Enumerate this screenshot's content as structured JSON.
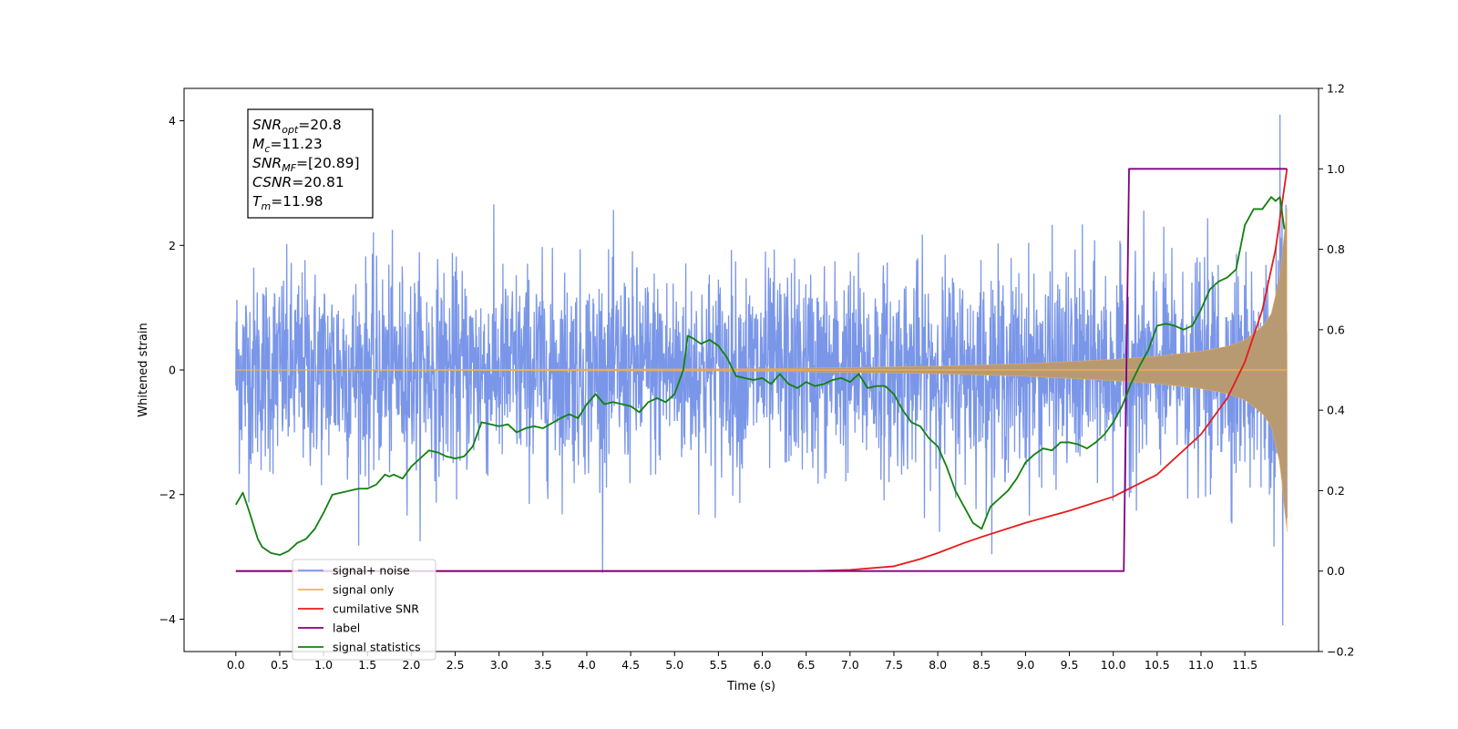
{
  "chart_data": {
    "type": "line",
    "title": "",
    "xlabel": "Time (s)",
    "ylabel": "Whitened strain",
    "xlim": [
      -0.59,
      12.34
    ],
    "ylim": [
      -4.52,
      4.52
    ],
    "y2lim": [
      -0.2,
      1.2
    ],
    "xticks": [
      0.0,
      0.5,
      1.0,
      1.5,
      2.0,
      2.5,
      3.0,
      3.5,
      4.0,
      4.5,
      5.0,
      5.5,
      6.0,
      6.5,
      7.0,
      7.5,
      8.0,
      8.5,
      9.0,
      9.5,
      10.0,
      10.5,
      11.0,
      11.5
    ],
    "xtick_labels": [
      "0.0",
      "0.5",
      "1.0",
      "1.5",
      "2.0",
      "2.5",
      "3.0",
      "3.5",
      "4.0",
      "4.5",
      "5.0",
      "5.5",
      "6.0",
      "6.5",
      "7.0",
      "7.5",
      "8.0",
      "8.5",
      "9.0",
      "9.5",
      "10.0",
      "10.5",
      "11.0",
      "11.5"
    ],
    "yticks": [
      -4,
      -2,
      0,
      2,
      4
    ],
    "ytick_labels": [
      "−4",
      "−2",
      "0",
      "2",
      "4"
    ],
    "y2ticks": [
      -0.2,
      0.0,
      0.2,
      0.4,
      0.6,
      0.8,
      1.0,
      1.2
    ],
    "y2tick_labels": [
      "−0.2",
      "0.0",
      "0.2",
      "0.4",
      "0.6",
      "0.8",
      "1.0",
      "1.2"
    ],
    "grid": false,
    "legend_position": "lower-left",
    "annotation": {
      "lines": [
        {
          "main": "SNR",
          "sub": "opt",
          "rest": "=20.8"
        },
        {
          "main": "M",
          "sub": "c",
          "rest": "=11.23"
        },
        {
          "main": "SNR",
          "sub": "MF",
          "rest": "=[20.89]"
        },
        {
          "main": "CSNR",
          "sub": "",
          "rest": "=20.81"
        },
        {
          "main": "T",
          "sub": "m",
          "rest": "=11.98"
        }
      ]
    },
    "series": [
      {
        "name": "signal+ noise",
        "color": "#7a96e8",
        "axis": "left",
        "style": "noise",
        "sample_rate": 250,
        "t_start": 0.0,
        "t_end": 11.98,
        "typical_peak": 1.7,
        "max_value": 4.1,
        "min_value": -4.1
      },
      {
        "name": "signal only",
        "color": "#f5b054",
        "fill_color": "#b89a72",
        "axis": "left",
        "style": "chirp_envelope",
        "t_start": 0.0,
        "t_end": 11.98,
        "envelope_t": [
          0.0,
          6.0,
          8.0,
          9.0,
          10.0,
          10.5,
          11.0,
          11.3,
          11.5,
          11.7,
          11.8,
          11.9,
          11.95,
          11.98
        ],
        "envelope_a": [
          0.0,
          0.02,
          0.06,
          0.1,
          0.17,
          0.22,
          0.3,
          0.38,
          0.48,
          0.7,
          0.9,
          1.5,
          2.2,
          2.6
        ]
      },
      {
        "name": "cumilative SNR",
        "color": "#e8191a",
        "axis": "right",
        "x": [
          0.0,
          6.5,
          7.0,
          7.5,
          7.8,
          8.0,
          8.3,
          8.5,
          9.0,
          9.5,
          10.0,
          10.5,
          11.0,
          11.3,
          11.5,
          11.7,
          11.85,
          11.98
        ],
        "y": [
          0.0,
          0.0,
          0.003,
          0.012,
          0.03,
          0.045,
          0.07,
          0.085,
          0.12,
          0.15,
          0.185,
          0.24,
          0.34,
          0.43,
          0.52,
          0.65,
          0.8,
          1.0
        ]
      },
      {
        "name": "label",
        "color": "#800080",
        "axis": "right",
        "x": [
          0.0,
          10.12,
          10.18,
          11.98
        ],
        "y": [
          0.0,
          0.0,
          1.0,
          1.0
        ]
      },
      {
        "name": "signal statistics",
        "color": "#118010",
        "axis": "right",
        "x": [
          0.0,
          0.08,
          0.15,
          0.2,
          0.25,
          0.3,
          0.4,
          0.5,
          0.6,
          0.65,
          0.7,
          0.8,
          0.9,
          1.0,
          1.1,
          1.2,
          1.3,
          1.4,
          1.5,
          1.6,
          1.7,
          1.75,
          1.8,
          1.9,
          2.0,
          2.1,
          2.2,
          2.3,
          2.4,
          2.5,
          2.6,
          2.7,
          2.8,
          3.0,
          3.1,
          3.2,
          3.3,
          3.4,
          3.5,
          3.7,
          3.8,
          3.9,
          4.0,
          4.1,
          4.2,
          4.3,
          4.4,
          4.5,
          4.6,
          4.7,
          4.8,
          4.9,
          5.0,
          5.1,
          5.15,
          5.2,
          5.3,
          5.4,
          5.5,
          5.6,
          5.7,
          5.8,
          5.9,
          6.0,
          6.1,
          6.2,
          6.3,
          6.4,
          6.5,
          6.6,
          6.7,
          6.8,
          6.9,
          7.0,
          7.1,
          7.2,
          7.3,
          7.4,
          7.5,
          7.6,
          7.7,
          7.8,
          7.9,
          8.0,
          8.1,
          8.2,
          8.3,
          8.4,
          8.5,
          8.6,
          8.7,
          8.8,
          8.9,
          9.0,
          9.1,
          9.2,
          9.3,
          9.4,
          9.5,
          9.6,
          9.7,
          9.8,
          9.9,
          10.0,
          10.1,
          10.2,
          10.3,
          10.4,
          10.5,
          10.6,
          10.7,
          10.8,
          10.9,
          11.0,
          11.1,
          11.2,
          11.3,
          11.4,
          11.5,
          11.6,
          11.7,
          11.8,
          11.85,
          11.9,
          11.95
        ],
        "y": [
          0.165,
          0.195,
          0.15,
          0.115,
          0.08,
          0.06,
          0.045,
          0.04,
          0.05,
          0.06,
          0.07,
          0.08,
          0.105,
          0.145,
          0.19,
          0.195,
          0.2,
          0.205,
          0.205,
          0.215,
          0.24,
          0.235,
          0.24,
          0.23,
          0.26,
          0.28,
          0.3,
          0.295,
          0.285,
          0.28,
          0.285,
          0.31,
          0.37,
          0.36,
          0.365,
          0.345,
          0.355,
          0.36,
          0.355,
          0.38,
          0.39,
          0.38,
          0.415,
          0.44,
          0.415,
          0.42,
          0.415,
          0.41,
          0.395,
          0.42,
          0.43,
          0.42,
          0.44,
          0.5,
          0.585,
          0.58,
          0.565,
          0.575,
          0.56,
          0.53,
          0.485,
          0.48,
          0.475,
          0.48,
          0.465,
          0.49,
          0.465,
          0.455,
          0.47,
          0.46,
          0.465,
          0.475,
          0.48,
          0.47,
          0.49,
          0.455,
          0.46,
          0.46,
          0.44,
          0.4,
          0.37,
          0.36,
          0.33,
          0.31,
          0.26,
          0.2,
          0.16,
          0.12,
          0.105,
          0.16,
          0.18,
          0.2,
          0.23,
          0.27,
          0.29,
          0.305,
          0.3,
          0.32,
          0.32,
          0.315,
          0.305,
          0.32,
          0.34,
          0.37,
          0.41,
          0.465,
          0.51,
          0.55,
          0.61,
          0.615,
          0.61,
          0.6,
          0.61,
          0.65,
          0.7,
          0.72,
          0.73,
          0.75,
          0.86,
          0.9,
          0.9,
          0.93,
          0.92,
          0.93,
          0.85
        ]
      }
    ]
  }
}
